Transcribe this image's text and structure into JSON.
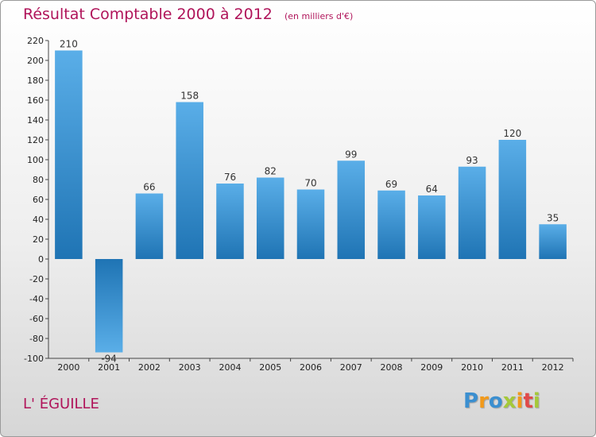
{
  "chart_data": {
    "type": "bar",
    "title": "Résultat Comptable 2000 à 2012",
    "subtitle": "(en milliers d'€)",
    "categories": [
      "2000",
      "2001",
      "2002",
      "2003",
      "2004",
      "2005",
      "2006",
      "2007",
      "2008",
      "2009",
      "2010",
      "2011",
      "2012"
    ],
    "values": [
      210,
      -94,
      66,
      158,
      76,
      82,
      70,
      99,
      69,
      64,
      93,
      120,
      35
    ],
    "ylim": [
      -100,
      220
    ],
    "yticks": [
      220,
      200,
      180,
      160,
      140,
      120,
      100,
      80,
      60,
      40,
      20,
      0,
      -20,
      -40,
      -60,
      -80,
      -100
    ],
    "xlabel": "",
    "ylabel": "",
    "grid": false,
    "colors": {
      "bar_light": "#5aaee8",
      "bar_dark": "#1f74b4",
      "title": "#b0145a"
    }
  },
  "place": "L' ÉGUILLE",
  "logo": {
    "letters": [
      {
        "ch": "P",
        "color": "#3b8fd0"
      },
      {
        "ch": "r",
        "color": "#f29a1b"
      },
      {
        "ch": "o",
        "color": "#3b8fd0"
      },
      {
        "ch": "x",
        "color": "#a5c93a"
      },
      {
        "ch": "i",
        "color": "#f29a1b"
      },
      {
        "ch": "t",
        "color": "#e04a4a"
      },
      {
        "ch": "i",
        "color": "#a5c93a"
      }
    ]
  }
}
